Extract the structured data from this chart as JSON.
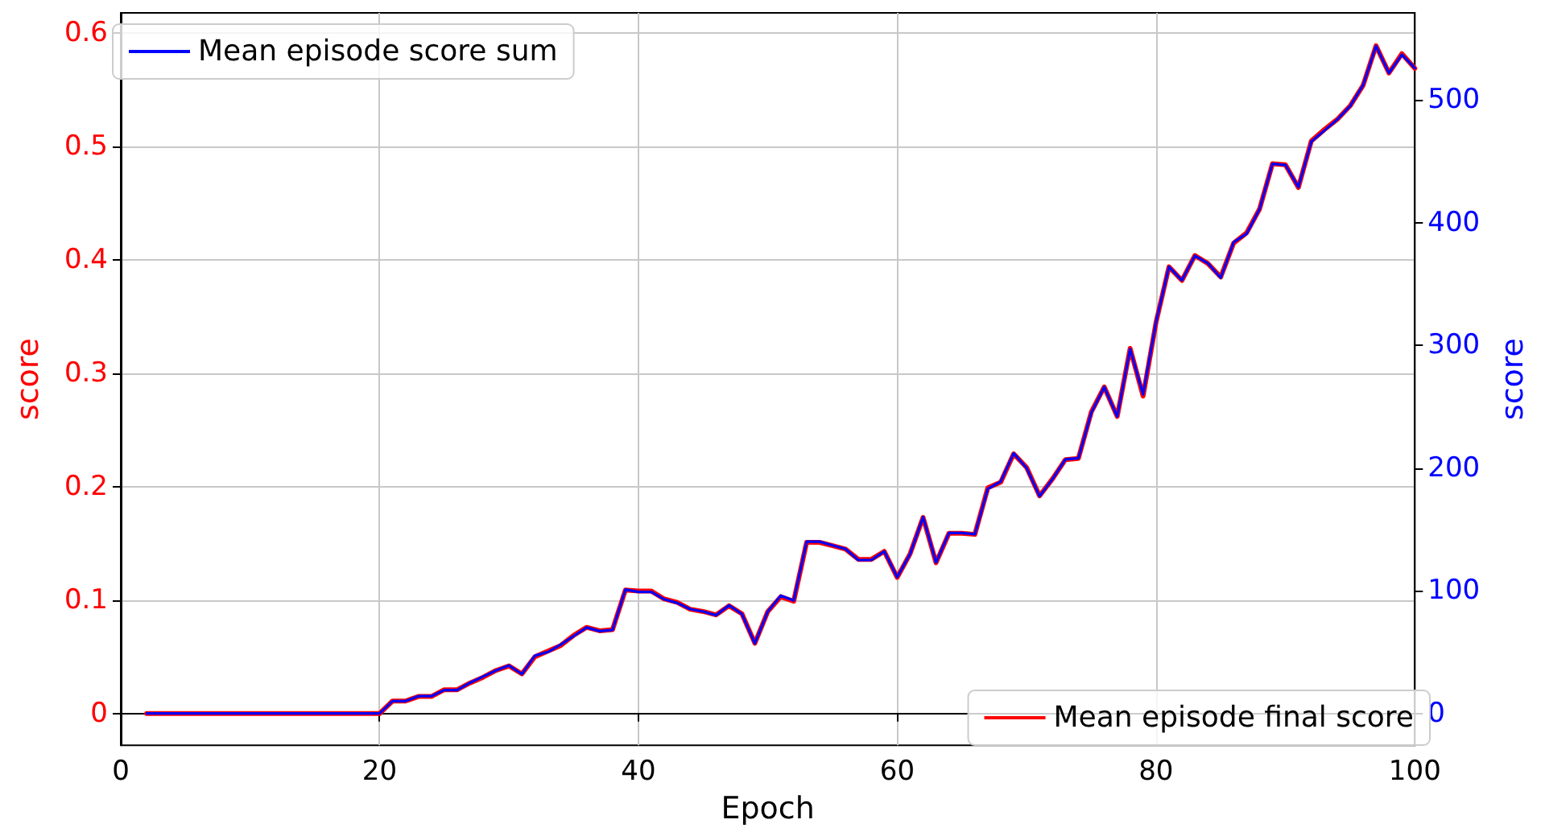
{
  "chart_data": {
    "type": "line",
    "xlabel": "Epoch",
    "ylabel": "score",
    "y2label": "score",
    "x": [
      2,
      3,
      4,
      5,
      6,
      7,
      8,
      9,
      10,
      11,
      12,
      13,
      14,
      15,
      16,
      17,
      18,
      19,
      20,
      21,
      22,
      23,
      24,
      25,
      26,
      27,
      28,
      29,
      30,
      31,
      32,
      33,
      34,
      35,
      36,
      37,
      38,
      39,
      40,
      41,
      42,
      43,
      44,
      45,
      46,
      47,
      48,
      49,
      50,
      51,
      52,
      53,
      54,
      55,
      56,
      57,
      58,
      59,
      60,
      61,
      62,
      63,
      64,
      65,
      66,
      67,
      68,
      69,
      70,
      71,
      72,
      73,
      74,
      75,
      76,
      77,
      78,
      79,
      80,
      81,
      82,
      83,
      84,
      85,
      86,
      87,
      88,
      89,
      90,
      91,
      92,
      93,
      94,
      95,
      96,
      97,
      98,
      99,
      100
    ],
    "series": [
      {
        "name": "Mean episode final score",
        "color": "#ff0000",
        "values": [
          0,
          0,
          0,
          0,
          0,
          0,
          0,
          0,
          0,
          0,
          0,
          0,
          0,
          0,
          0,
          0,
          0,
          0,
          0,
          0.011,
          0.011,
          0.015,
          0.015,
          0.021,
          0.021,
          0.027,
          0.032,
          0.038,
          0.042,
          0.035,
          0.05,
          0.055,
          0.06,
          0.069,
          0.076,
          0.073,
          0.074,
          0.109,
          0.108,
          0.108,
          0.101,
          0.098,
          0.092,
          0.09,
          0.087,
          0.095,
          0.088,
          0.062,
          0.09,
          0.103,
          0.099,
          0.151,
          0.151,
          0.148,
          0.145,
          0.136,
          0.136,
          0.143,
          0.12,
          0.141,
          0.173,
          0.133,
          0.159,
          0.159,
          0.158,
          0.199,
          0.204,
          0.229,
          0.217,
          0.192,
          0.207,
          0.224,
          0.225,
          0.266,
          0.288,
          0.262,
          0.322,
          0.28,
          0.345,
          0.394,
          0.382,
          0.404,
          0.397,
          0.385,
          0.415,
          0.424,
          0.445,
          0.485,
          0.484,
          0.464,
          0.505,
          0.515,
          0.524,
          0.536,
          0.554,
          0.589,
          0.565,
          0.582,
          0.569
        ]
      },
      {
        "name": "Mean episode score sum",
        "color": "#0000ff",
        "axis": "y2",
        "values": [
          0,
          0,
          0,
          0,
          0,
          0,
          0,
          0,
          0,
          0,
          0,
          0,
          0,
          0,
          0,
          0,
          0,
          0,
          0,
          10,
          10,
          14,
          14,
          19,
          19,
          25,
          30,
          35,
          39,
          32,
          47,
          50,
          56,
          63,
          70,
          67,
          68,
          101,
          99,
          99,
          93,
          90,
          85,
          83,
          80,
          88,
          81,
          57,
          83,
          96,
          92,
          140,
          140,
          137,
          134,
          125,
          125,
          132,
          111,
          130,
          160,
          123,
          147,
          147,
          146,
          183,
          189,
          212,
          200,
          177,
          191,
          207,
          208,
          245,
          266,
          242,
          297,
          260,
          319,
          364,
          353,
          373,
          367,
          355,
          384,
          391,
          411,
          448,
          447,
          429,
          466,
          475,
          484,
          495,
          512,
          544,
          522,
          537,
          526
        ]
      }
    ],
    "xlim": [
      0,
      100
    ],
    "xticks": [
      0,
      20,
      40,
      60,
      80,
      100
    ],
    "ylim": [
      -0.028,
      0.618
    ],
    "yticks": [
      0,
      0.1,
      0.2,
      0.3,
      0.4,
      0.5,
      0.6
    ],
    "y2lim": [
      -26,
      571
    ],
    "y2ticks": [
      0,
      100,
      200,
      300,
      400,
      500
    ],
    "grid": true,
    "legend": "bottom right",
    "marker": "none",
    "line_style": "solid"
  }
}
